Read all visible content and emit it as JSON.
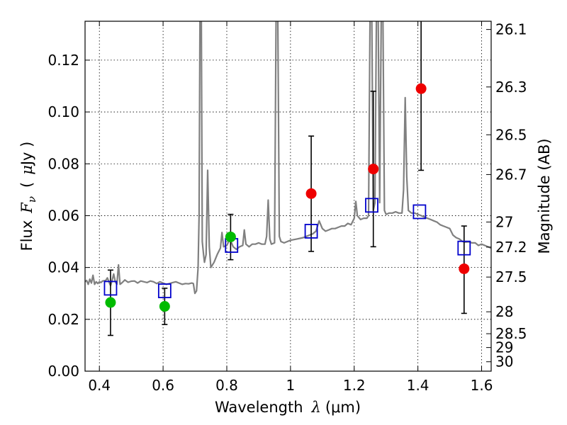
{
  "chart_data": {
    "type": "scatter",
    "title": "",
    "xlabel": "Wavelength",
    "xlabel_math": "λ",
    "xlabel_unit": "(μm)",
    "ylabel": "Flux",
    "ylabel_math": "F",
    "ylabel_math_sub": "ν",
    "ylabel_unit_open": "(",
    "ylabel_unit_mu": "μ",
    "ylabel_unit_rest": "Jy )",
    "y2label": "Magnitude (AB)",
    "xlim": [
      0.355,
      1.63
    ],
    "ylim": [
      0.0,
      0.135
    ],
    "grid": true,
    "x_ticks": [
      {
        "value": 0.4,
        "label": "0.4"
      },
      {
        "value": 0.6,
        "label": "0.6"
      },
      {
        "value": 0.8,
        "label": "0.8"
      },
      {
        "value": 1.0,
        "label": "1"
      },
      {
        "value": 1.2,
        "label": "1.2"
      },
      {
        "value": 1.4,
        "label": "1.4"
      },
      {
        "value": 1.6,
        "label": "1.6"
      }
    ],
    "y_ticks": [
      {
        "value": 0.0,
        "label": "0.00"
      },
      {
        "value": 0.02,
        "label": "0.02"
      },
      {
        "value": 0.04,
        "label": "0.04"
      },
      {
        "value": 0.06,
        "label": "0.06"
      },
      {
        "value": 0.08,
        "label": "0.08"
      },
      {
        "value": 0.1,
        "label": "0.10"
      },
      {
        "value": 0.12,
        "label": "0.12"
      }
    ],
    "y2_ticks": [
      {
        "value": 26.1,
        "label": "26.1"
      },
      {
        "value": 26.3,
        "label": "26.3"
      },
      {
        "value": 26.5,
        "label": "26.5"
      },
      {
        "value": 26.7,
        "label": "26.7"
      },
      {
        "value": 27.0,
        "label": "27"
      },
      {
        "value": 27.2,
        "label": "27.2"
      },
      {
        "value": 27.5,
        "label": "27.5"
      },
      {
        "value": 28.0,
        "label": "28"
      },
      {
        "value": 28.5,
        "label": "28.5"
      },
      {
        "value": 29.0,
        "label": "29"
      },
      {
        "value": 30.0,
        "label": "30"
      }
    ],
    "colors": {
      "spectrum": "#808080",
      "model": "#0000cc",
      "photometry_red": "#ee0000",
      "photometry_green": "#00bb00",
      "errorbar": "#000000"
    },
    "spectrum": [
      [
        0.355,
        0.0345
      ],
      [
        0.36,
        0.035
      ],
      [
        0.365,
        0.0335
      ],
      [
        0.37,
        0.0355
      ],
      [
        0.375,
        0.034
      ],
      [
        0.38,
        0.037
      ],
      [
        0.385,
        0.0335
      ],
      [
        0.39,
        0.0345
      ],
      [
        0.395,
        0.0338
      ],
      [
        0.4,
        0.0345
      ],
      [
        0.405,
        0.0342
      ],
      [
        0.41,
        0.0348
      ],
      [
        0.42,
        0.035
      ],
      [
        0.425,
        0.036
      ],
      [
        0.43,
        0.0345
      ],
      [
        0.435,
        0.033
      ],
      [
        0.44,
        0.035
      ],
      [
        0.445,
        0.0375
      ],
      [
        0.45,
        0.0345
      ],
      [
        0.455,
        0.0335
      ],
      [
        0.46,
        0.041
      ],
      [
        0.465,
        0.0335
      ],
      [
        0.47,
        0.034
      ],
      [
        0.48,
        0.0352
      ],
      [
        0.49,
        0.0343
      ],
      [
        0.5,
        0.0347
      ],
      [
        0.51,
        0.0348
      ],
      [
        0.52,
        0.034
      ],
      [
        0.53,
        0.0348
      ],
      [
        0.54,
        0.0345
      ],
      [
        0.55,
        0.0342
      ],
      [
        0.56,
        0.0348
      ],
      [
        0.57,
        0.0345
      ],
      [
        0.58,
        0.0338
      ],
      [
        0.59,
        0.0345
      ],
      [
        0.6,
        0.034
      ],
      [
        0.61,
        0.0335
      ],
      [
        0.62,
        0.0338
      ],
      [
        0.63,
        0.0342
      ],
      [
        0.64,
        0.0345
      ],
      [
        0.65,
        0.034
      ],
      [
        0.66,
        0.0335
      ],
      [
        0.67,
        0.0338
      ],
      [
        0.68,
        0.0337
      ],
      [
        0.69,
        0.034
      ],
      [
        0.695,
        0.0338
      ],
      [
        0.7,
        0.03
      ],
      [
        0.705,
        0.031
      ],
      [
        0.71,
        0.04
      ],
      [
        0.713,
        0.06
      ],
      [
        0.716,
        0.14
      ],
      [
        0.72,
        0.14
      ],
      [
        0.723,
        0.05
      ],
      [
        0.727,
        0.045
      ],
      [
        0.73,
        0.042
      ],
      [
        0.735,
        0.045
      ],
      [
        0.74,
        0.0775
      ],
      [
        0.745,
        0.048
      ],
      [
        0.75,
        0.04
      ],
      [
        0.76,
        0.042
      ],
      [
        0.77,
        0.045
      ],
      [
        0.78,
        0.0475
      ],
      [
        0.785,
        0.0535
      ],
      [
        0.79,
        0.048
      ],
      [
        0.8,
        0.0485
      ],
      [
        0.81,
        0.051
      ],
      [
        0.82,
        0.048
      ],
      [
        0.83,
        0.047
      ],
      [
        0.84,
        0.048
      ],
      [
        0.85,
        0.0485
      ],
      [
        0.855,
        0.0545
      ],
      [
        0.86,
        0.049
      ],
      [
        0.87,
        0.048
      ],
      [
        0.88,
        0.049
      ],
      [
        0.89,
        0.049
      ],
      [
        0.9,
        0.0495
      ],
      [
        0.91,
        0.049
      ],
      [
        0.92,
        0.049
      ],
      [
        0.925,
        0.052
      ],
      [
        0.93,
        0.066
      ],
      [
        0.935,
        0.051
      ],
      [
        0.94,
        0.049
      ],
      [
        0.95,
        0.0495
      ],
      [
        0.955,
        0.14
      ],
      [
        0.96,
        0.14
      ],
      [
        0.965,
        0.052
      ],
      [
        0.97,
        0.05
      ],
      [
        0.98,
        0.0495
      ],
      [
        0.99,
        0.05
      ],
      [
        1.0,
        0.0505
      ],
      [
        1.02,
        0.051
      ],
      [
        1.04,
        0.0515
      ],
      [
        1.05,
        0.052
      ],
      [
        1.06,
        0.0525
      ],
      [
        1.07,
        0.053
      ],
      [
        1.08,
        0.054
      ],
      [
        1.09,
        0.058
      ],
      [
        1.1,
        0.055
      ],
      [
        1.11,
        0.054
      ],
      [
        1.12,
        0.0545
      ],
      [
        1.13,
        0.055
      ],
      [
        1.14,
        0.055
      ],
      [
        1.15,
        0.0555
      ],
      [
        1.16,
        0.056
      ],
      [
        1.17,
        0.056
      ],
      [
        1.18,
        0.057
      ],
      [
        1.19,
        0.0565
      ],
      [
        1.2,
        0.059
      ],
      [
        1.205,
        0.0655
      ],
      [
        1.21,
        0.06
      ],
      [
        1.22,
        0.0585
      ],
      [
        1.23,
        0.059
      ],
      [
        1.24,
        0.059
      ],
      [
        1.245,
        0.06
      ],
      [
        1.25,
        0.14
      ],
      [
        1.255,
        0.14
      ],
      [
        1.26,
        0.062
      ],
      [
        1.265,
        0.065
      ],
      [
        1.27,
        0.14
      ],
      [
        1.275,
        0.14
      ],
      [
        1.28,
        0.065
      ],
      [
        1.285,
        0.14
      ],
      [
        1.29,
        0.14
      ],
      [
        1.295,
        0.062
      ],
      [
        1.3,
        0.0605
      ],
      [
        1.31,
        0.061
      ],
      [
        1.32,
        0.061
      ],
      [
        1.33,
        0.0615
      ],
      [
        1.34,
        0.061
      ],
      [
        1.35,
        0.061
      ],
      [
        1.355,
        0.07
      ],
      [
        1.36,
        0.1055
      ],
      [
        1.365,
        0.075
      ],
      [
        1.37,
        0.062
      ],
      [
        1.38,
        0.061
      ],
      [
        1.39,
        0.061
      ],
      [
        1.4,
        0.0605
      ],
      [
        1.41,
        0.06
      ],
      [
        1.42,
        0.0595
      ],
      [
        1.43,
        0.059
      ],
      [
        1.44,
        0.0585
      ],
      [
        1.45,
        0.058
      ],
      [
        1.46,
        0.0575
      ],
      [
        1.47,
        0.0565
      ],
      [
        1.48,
        0.056
      ],
      [
        1.49,
        0.0555
      ],
      [
        1.5,
        0.055
      ],
      [
        1.51,
        0.0525
      ],
      [
        1.52,
        0.0515
      ],
      [
        1.53,
        0.051
      ],
      [
        1.54,
        0.05
      ],
      [
        1.55,
        0.0498
      ],
      [
        1.56,
        0.0499
      ],
      [
        1.57,
        0.0495
      ],
      [
        1.58,
        0.0495
      ],
      [
        1.59,
        0.0485
      ],
      [
        1.6,
        0.049
      ],
      [
        1.61,
        0.0485
      ],
      [
        1.62,
        0.048
      ],
      [
        1.63,
        0.0475
      ]
    ],
    "model_points": [
      {
        "x": 0.435,
        "y": 0.032
      },
      {
        "x": 0.605,
        "y": 0.031
      },
      {
        "x": 0.815,
        "y": 0.0485
      },
      {
        "x": 1.065,
        "y": 0.054
      },
      {
        "x": 1.255,
        "y": 0.064
      },
      {
        "x": 1.405,
        "y": 0.0615
      },
      {
        "x": 1.545,
        "y": 0.0475
      }
    ],
    "photometry": [
      {
        "x": 0.435,
        "y": 0.0265,
        "err_low": 0.0138,
        "err_high": 0.039,
        "color": "green"
      },
      {
        "x": 0.605,
        "y": 0.025,
        "err_low": 0.018,
        "err_high": 0.032,
        "color": "green"
      },
      {
        "x": 0.812,
        "y": 0.0518,
        "err_low": 0.043,
        "err_high": 0.0605,
        "color": "green"
      },
      {
        "x": 1.065,
        "y": 0.0685,
        "err_low": 0.0462,
        "err_high": 0.0907,
        "color": "red"
      },
      {
        "x": 1.26,
        "y": 0.078,
        "err_low": 0.048,
        "err_high": 0.108,
        "color": "red"
      },
      {
        "x": 1.41,
        "y": 0.109,
        "err_low": 0.0775,
        "err_high": 0.14,
        "color": "red"
      },
      {
        "x": 1.545,
        "y": 0.0395,
        "err_low": 0.0223,
        "err_high": 0.056,
        "color": "red"
      }
    ]
  }
}
